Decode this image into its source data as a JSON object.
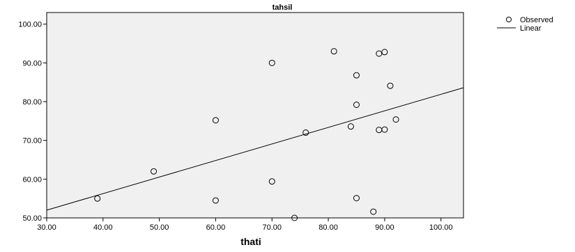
{
  "chart_data": {
    "type": "scatter",
    "title": "tahsil",
    "xlabel": "thati",
    "ylabel": "",
    "xlim": [
      30,
      104
    ],
    "ylim": [
      50,
      103
    ],
    "x_ticks": [
      "30.00",
      "40.00",
      "50.00",
      "60.00",
      "70.00",
      "80.00",
      "90.00",
      "100.00"
    ],
    "x_tick_values": [
      30,
      40,
      50,
      60,
      70,
      80,
      90,
      100
    ],
    "y_ticks": [
      "50.00",
      "60.00",
      "70.00",
      "80.00",
      "90.00",
      "100.00"
    ],
    "y_tick_values": [
      50,
      60,
      70,
      80,
      90,
      100
    ],
    "grid": false,
    "legend_position": "top-right",
    "plot_background": "#f0f0f0",
    "series": [
      {
        "name": "Observed",
        "marker": "open-circle",
        "points": [
          {
            "x": 39,
            "y": 55.0
          },
          {
            "x": 49,
            "y": 62.0
          },
          {
            "x": 60,
            "y": 75.2
          },
          {
            "x": 60,
            "y": 54.5
          },
          {
            "x": 70,
            "y": 90.0
          },
          {
            "x": 70,
            "y": 59.4
          },
          {
            "x": 74,
            "y": 50.0
          },
          {
            "x": 76,
            "y": 72.0
          },
          {
            "x": 81,
            "y": 93.0
          },
          {
            "x": 84,
            "y": 73.6
          },
          {
            "x": 85,
            "y": 86.8
          },
          {
            "x": 85,
            "y": 79.2
          },
          {
            "x": 85,
            "y": 55.1
          },
          {
            "x": 88,
            "y": 51.6
          },
          {
            "x": 89,
            "y": 92.4
          },
          {
            "x": 89,
            "y": 72.7
          },
          {
            "x": 90,
            "y": 92.8
          },
          {
            "x": 90,
            "y": 72.8
          },
          {
            "x": 91,
            "y": 84.1
          },
          {
            "x": 92,
            "y": 75.4
          }
        ]
      },
      {
        "name": "Linear",
        "type": "line",
        "x": [
          30,
          104
        ],
        "y": [
          52.0,
          83.6
        ]
      }
    ]
  },
  "legend": {
    "observed_label": "Observed",
    "linear_label": "Linear"
  }
}
